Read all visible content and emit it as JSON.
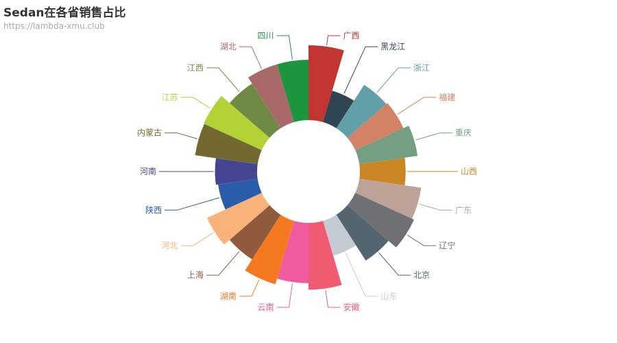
{
  "title": "Sedan在各省销售占比",
  "subtitle": "https://lambda-xmu.club",
  "chart_data": {
    "type": "pie",
    "subtype": "nightingale-rose",
    "title": "Sedan在各省销售占比",
    "subtitle": "https://lambda-xmu.club",
    "legend": "none",
    "radius_range": [
      30,
      100
    ],
    "slices": [
      {
        "name": "广西",
        "value": 100,
        "color": "#c23531"
      },
      {
        "name": "黑龙江",
        "value": 42,
        "color": "#2f4554"
      },
      {
        "name": "浙江",
        "value": 68,
        "color": "#61a0a8"
      },
      {
        "name": "福建",
        "value": 70,
        "color": "#d48265"
      },
      {
        "name": "重庆",
        "value": 78,
        "color": "#749f83"
      },
      {
        "name": "山西",
        "value": 60,
        "color": "#ca8622"
      },
      {
        "name": "广东",
        "value": 83,
        "color": "#bda29a"
      },
      {
        "name": "辽宁",
        "value": 86,
        "color": "#6e7074"
      },
      {
        "name": "北京",
        "value": 72,
        "color": "#546570"
      },
      {
        "name": "山东",
        "value": 47,
        "color": "#c4ccd3"
      },
      {
        "name": "安徽",
        "value": 89,
        "color": "#f05b72"
      },
      {
        "name": "云南",
        "value": 80,
        "color": "#ef5b9c"
      },
      {
        "name": "湖南",
        "value": 88,
        "color": "#f47920"
      },
      {
        "name": "上海",
        "value": 70,
        "color": "#905a3d"
      },
      {
        "name": "河北",
        "value": 80,
        "color": "#fab27b"
      },
      {
        "name": "陕西",
        "value": 52,
        "color": "#2a5caa"
      },
      {
        "name": "河南",
        "value": 55,
        "color": "#444693"
      },
      {
        "name": "内蒙古",
        "value": 84,
        "color": "#726930"
      },
      {
        "name": "江苏",
        "value": 85,
        "color": "#b2d235"
      },
      {
        "name": "江西",
        "value": 70,
        "color": "#6f8a45"
      },
      {
        "name": "湖北",
        "value": 80,
        "color": "#aa6969"
      },
      {
        "name": "四川",
        "value": 80,
        "color": "#1d953f"
      }
    ]
  }
}
